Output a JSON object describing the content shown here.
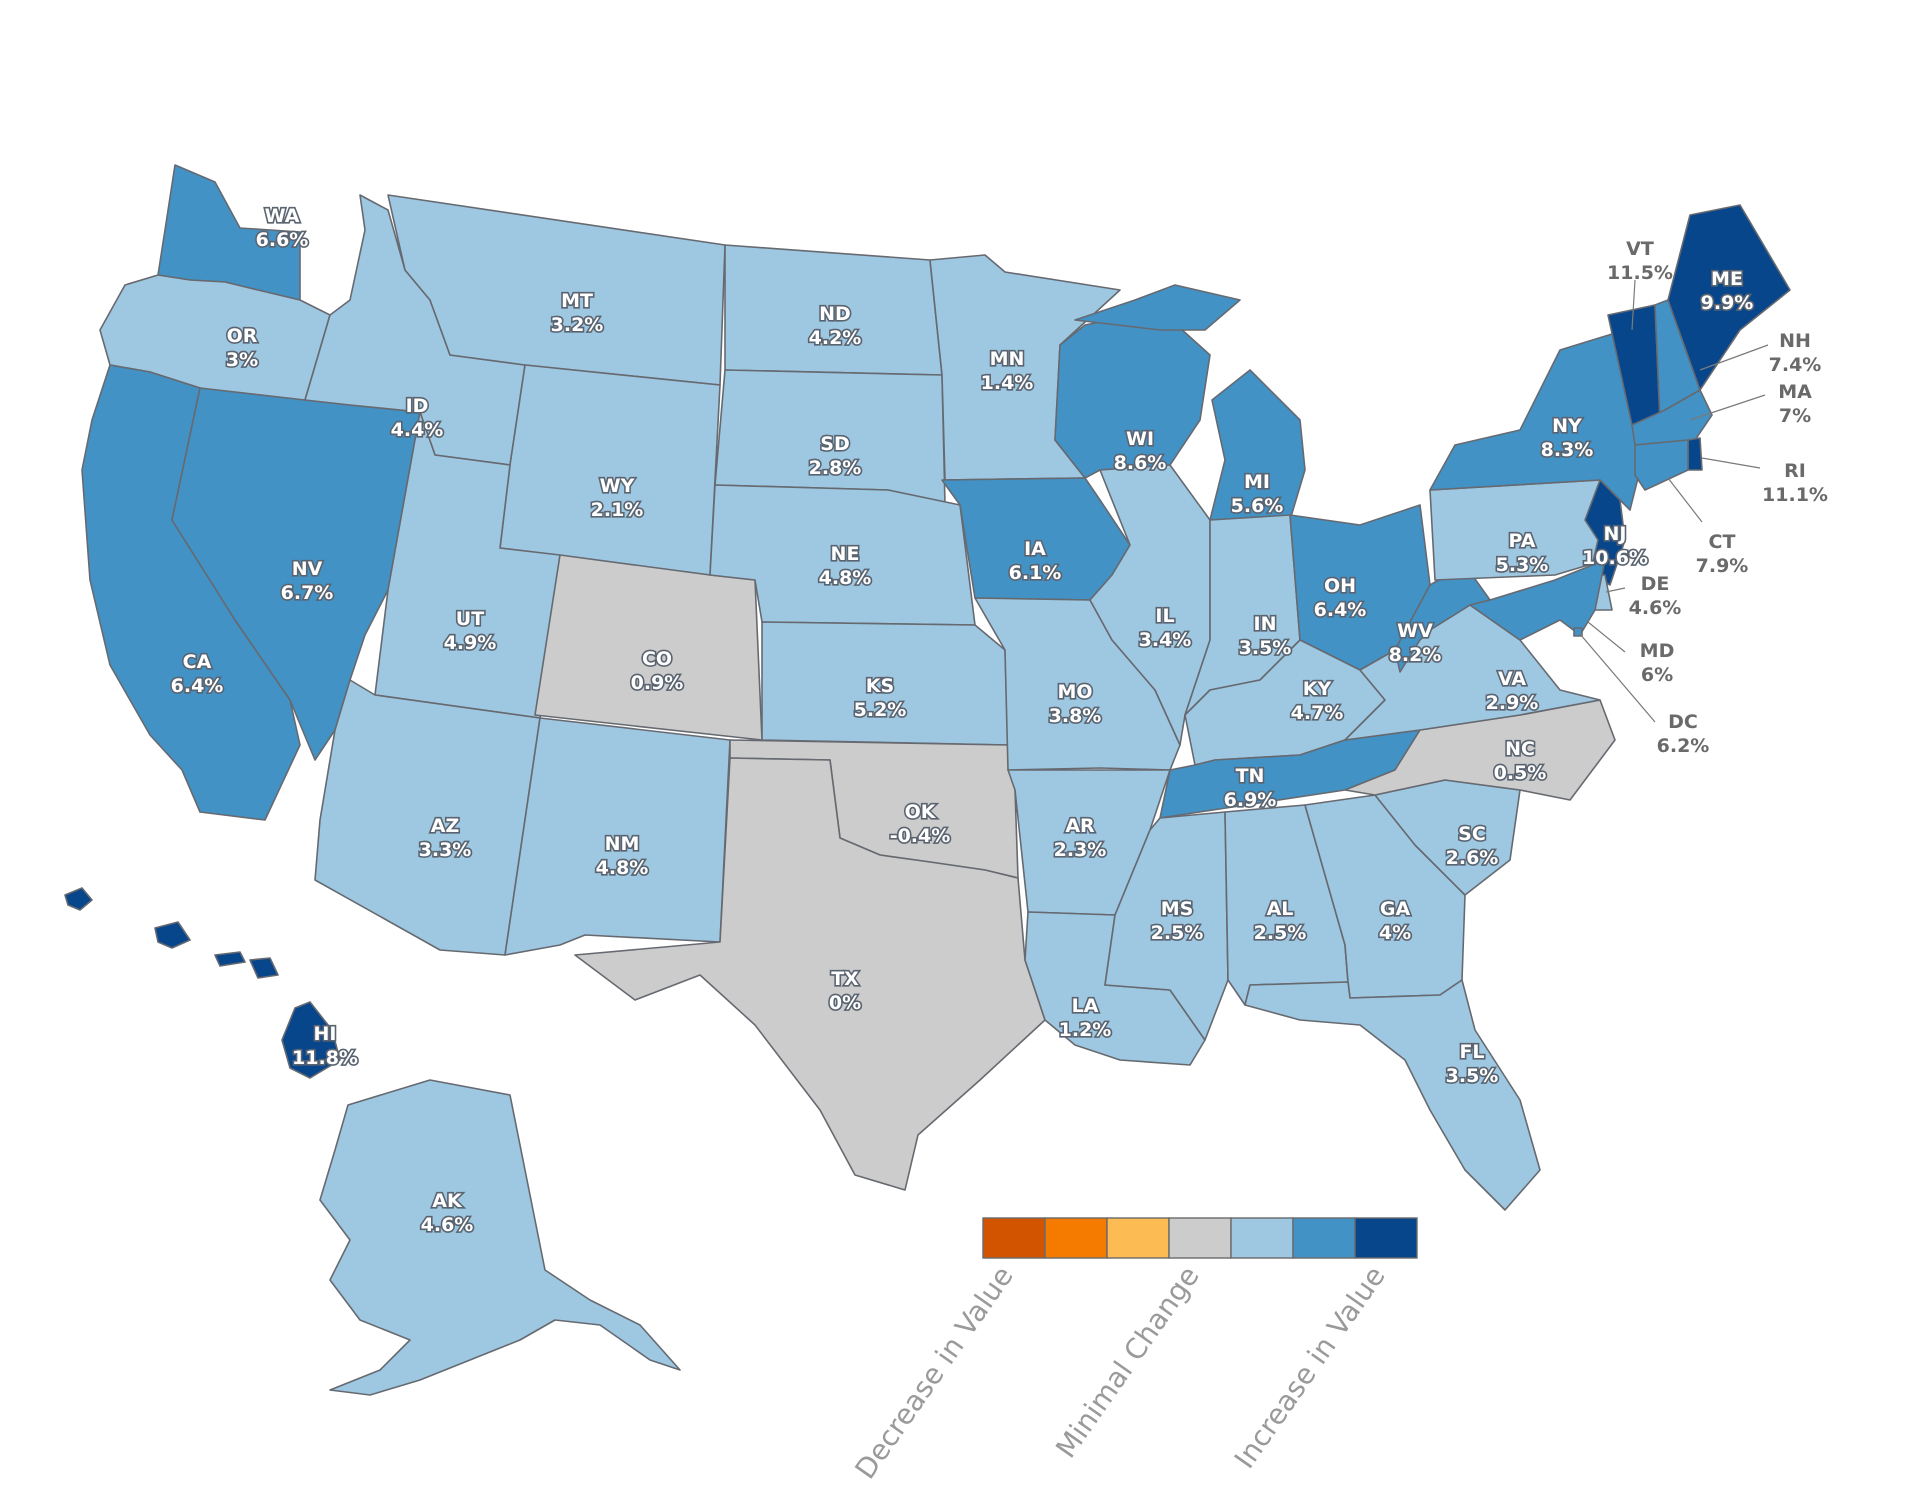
{
  "colors": {
    "dec_strong": "#d35400",
    "dec_mid": "#f47b00",
    "dec_light": "#fdbb54",
    "neutral": "#cccccc",
    "inc_light": "#9ec7e1",
    "inc_mid": "#4292c6",
    "inc_strong": "#08468c"
  },
  "states": [
    {
      "abbr": "WA",
      "value": "6.6%",
      "cls": "inc_mid"
    },
    {
      "abbr": "OR",
      "value": "3%",
      "cls": "inc_light"
    },
    {
      "abbr": "CA",
      "value": "6.4%",
      "cls": "inc_mid"
    },
    {
      "abbr": "NV",
      "value": "6.7%",
      "cls": "inc_mid"
    },
    {
      "abbr": "ID",
      "value": "4.4%",
      "cls": "inc_light"
    },
    {
      "abbr": "MT",
      "value": "3.2%",
      "cls": "inc_light"
    },
    {
      "abbr": "WY",
      "value": "2.1%",
      "cls": "inc_light"
    },
    {
      "abbr": "UT",
      "value": "4.9%",
      "cls": "inc_light"
    },
    {
      "abbr": "AZ",
      "value": "3.3%",
      "cls": "inc_light"
    },
    {
      "abbr": "CO",
      "value": "0.9%",
      "cls": "neutral"
    },
    {
      "abbr": "NM",
      "value": "4.8%",
      "cls": "inc_light"
    },
    {
      "abbr": "ND",
      "value": "4.2%",
      "cls": "inc_light"
    },
    {
      "abbr": "SD",
      "value": "2.8%",
      "cls": "inc_light"
    },
    {
      "abbr": "NE",
      "value": "4.8%",
      "cls": "inc_light"
    },
    {
      "abbr": "KS",
      "value": "5.2%",
      "cls": "inc_light"
    },
    {
      "abbr": "OK",
      "value": "-0.4%",
      "cls": "neutral"
    },
    {
      "abbr": "TX",
      "value": "0%",
      "cls": "neutral"
    },
    {
      "abbr": "MN",
      "value": "1.4%",
      "cls": "inc_light"
    },
    {
      "abbr": "IA",
      "value": "6.1%",
      "cls": "inc_mid"
    },
    {
      "abbr": "MO",
      "value": "3.8%",
      "cls": "inc_light"
    },
    {
      "abbr": "AR",
      "value": "2.3%",
      "cls": "inc_light"
    },
    {
      "abbr": "LA",
      "value": "1.2%",
      "cls": "inc_light"
    },
    {
      "abbr": "WI",
      "value": "8.6%",
      "cls": "inc_mid"
    },
    {
      "abbr": "IL",
      "value": "3.4%",
      "cls": "inc_light"
    },
    {
      "abbr": "MI",
      "value": "5.6%",
      "cls": "inc_mid"
    },
    {
      "abbr": "IN",
      "value": "3.5%",
      "cls": "inc_light"
    },
    {
      "abbr": "OH",
      "value": "6.4%",
      "cls": "inc_mid"
    },
    {
      "abbr": "KY",
      "value": "4.7%",
      "cls": "inc_light"
    },
    {
      "abbr": "TN",
      "value": "6.9%",
      "cls": "inc_mid"
    },
    {
      "abbr": "MS",
      "value": "2.5%",
      "cls": "inc_light"
    },
    {
      "abbr": "AL",
      "value": "2.5%",
      "cls": "inc_light"
    },
    {
      "abbr": "GA",
      "value": "4%",
      "cls": "inc_light"
    },
    {
      "abbr": "FL",
      "value": "3.5%",
      "cls": "inc_light"
    },
    {
      "abbr": "SC",
      "value": "2.6%",
      "cls": "inc_light"
    },
    {
      "abbr": "NC",
      "value": "0.5%",
      "cls": "neutral"
    },
    {
      "abbr": "VA",
      "value": "2.9%",
      "cls": "inc_light"
    },
    {
      "abbr": "WV",
      "value": "8.2%",
      "cls": "inc_mid"
    },
    {
      "abbr": "PA",
      "value": "5.3%",
      "cls": "inc_light"
    },
    {
      "abbr": "NY",
      "value": "8.3%",
      "cls": "inc_mid"
    },
    {
      "abbr": "VT",
      "value": "11.5%",
      "cls": "inc_strong"
    },
    {
      "abbr": "NH",
      "value": "7.4%",
      "cls": "inc_mid"
    },
    {
      "abbr": "ME",
      "value": "9.9%",
      "cls": "inc_strong"
    },
    {
      "abbr": "MA",
      "value": "7%",
      "cls": "inc_mid"
    },
    {
      "abbr": "RI",
      "value": "11.1%",
      "cls": "inc_strong"
    },
    {
      "abbr": "CT",
      "value": "7.9%",
      "cls": "inc_mid"
    },
    {
      "abbr": "NJ",
      "value": "10.6%",
      "cls": "inc_strong"
    },
    {
      "abbr": "DE",
      "value": "4.6%",
      "cls": "inc_light"
    },
    {
      "abbr": "MD",
      "value": "6%",
      "cls": "inc_mid"
    },
    {
      "abbr": "DC",
      "value": "6.2%",
      "cls": "inc_mid"
    },
    {
      "abbr": "AK",
      "value": "4.6%",
      "cls": "inc_light"
    },
    {
      "abbr": "HI",
      "value": "11.8%",
      "cls": "inc_strong"
    }
  ],
  "legend": {
    "swatches": [
      "dec_strong",
      "dec_mid",
      "dec_light",
      "neutral",
      "inc_light",
      "inc_mid",
      "inc_strong"
    ],
    "labels": [
      "Decrease in Value",
      "Minimal Change",
      "Increase in Value"
    ]
  }
}
